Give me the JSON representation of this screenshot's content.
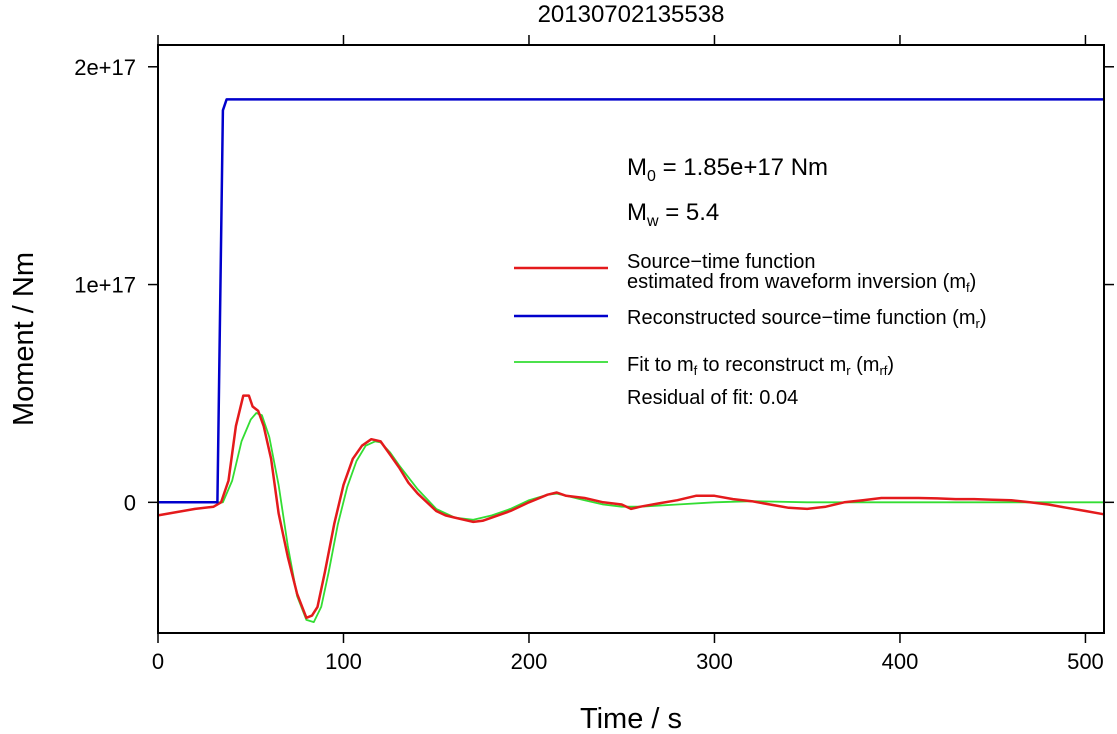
{
  "chart_data": {
    "type": "line",
    "title": "20130702135538",
    "xlabel": "Time / s",
    "ylabel": "Moment / Nm",
    "xlim": [
      0,
      510
    ],
    "ylim": [
      -6e+16,
      2.1e+17
    ],
    "x_ticks": [
      0,
      100,
      200,
      300,
      400,
      500
    ],
    "x_tick_labels": [
      "0",
      "100",
      "200",
      "300",
      "400",
      "500"
    ],
    "y_ticks": [
      0,
      1e+17,
      2e+17
    ],
    "y_tick_labels": [
      "0",
      "1e+17",
      "2e+17"
    ],
    "grid": false,
    "legend_position": "right, mid-height inside the plot",
    "annotations": {
      "m0_main": "M",
      "m0_sub": "0",
      "m0_rest": " = 1.85e+17 Nm",
      "mw_main": "M",
      "mw_sub": "w",
      "mw_rest": " = 5.4",
      "residual": "Residual of fit: 0.04"
    },
    "legend": [
      {
        "line1": "Source−time function",
        "line2_text": "estimated from waveform inversion (m",
        "line2_sub": "f",
        "line2_close": ")",
        "color": "#e41a1c"
      },
      {
        "line1_text": "Reconstructed source−time function (m",
        "line1_sub": "r",
        "line1_close": ")",
        "color": "#0000cc"
      },
      {
        "t1": "Fit to m",
        "s1": "f",
        "t2": " to reconstruct m",
        "s2": "r",
        "t3": " (m",
        "s3": "rf",
        "t4": ")",
        "color": "#33dd33"
      }
    ],
    "series": [
      {
        "role": "source-time function estimated from waveform inversion",
        "color": "#e41a1c",
        "x": [
          0,
          10,
          20,
          30,
          34,
          38,
          42,
          46,
          49,
          51,
          54,
          57,
          61,
          65,
          70,
          75,
          80,
          83,
          86,
          90,
          95,
          100,
          105,
          110,
          115,
          120,
          125,
          130,
          135,
          140,
          145,
          150,
          155,
          160,
          165,
          170,
          175,
          180,
          190,
          200,
          210,
          215,
          220,
          230,
          240,
          250,
          255,
          260,
          270,
          280,
          290,
          300,
          310,
          320,
          330,
          340,
          350,
          360,
          370,
          380,
          390,
          400,
          410,
          420,
          430,
          440,
          450,
          460,
          470,
          480,
          490,
          500,
          510
        ],
        "y": [
          -6000000000000000.0,
          -4500000000000000.0,
          -3000000000000000.0,
          -2000000000000000.0,
          0,
          1e+16,
          3.5e+16,
          4.9e+16,
          4.9e+16,
          4.4e+16,
          4.2e+16,
          3.5e+16,
          2e+16,
          -5000000000000000.0,
          -2.5e+16,
          -4.2e+16,
          -5.3e+16,
          -5.2e+16,
          -4.8e+16,
          -3.2e+16,
          -1e+16,
          8000000000000000.0,
          2e+16,
          2.6e+16,
          2.9e+16,
          2.8e+16,
          2.2e+16,
          1.6e+16,
          9000000000000000.0,
          4000000000000000.0,
          0.0,
          -4000000000000000.0,
          -6000000000000000.0,
          -7000000000000000.0,
          -8000000000000000.0,
          -9000000000000000.0,
          -8500000000000000.0,
          -7000000000000000.0,
          -4000000000000000.0,
          0,
          3500000000000000.0,
          4500000000000000.0,
          3000000000000000.0,
          2000000000000000.0,
          0,
          -1000000000000000.0,
          -3000000000000000.0,
          -2000000000000000.0,
          -500000000000000.0,
          1000000000000000.0,
          3000000000000000.0,
          3000000000000000.0,
          1500000000000000.0,
          500000000000000.0,
          -1000000000000000.0,
          -2500000000000000.0,
          -3000000000000000.0,
          -2000000000000000.0,
          0,
          1000000000000000.0,
          2000000000000000.0,
          2000000000000000.0,
          2000000000000000.0,
          1800000000000000.0,
          1500000000000000.0,
          1500000000000000.0,
          1200000000000000.0,
          1000000000000000.0,
          0,
          -1000000000000000.0,
          -2500000000000000.0,
          -4000000000000000.0,
          -5500000000000000.0
        ]
      },
      {
        "role": "reconstructed source-time function",
        "color": "#0000cc",
        "x": [
          0,
          32,
          35,
          37,
          510
        ],
        "y": [
          0,
          0,
          1.8e+17,
          1.85e+17,
          1.85e+17
        ]
      },
      {
        "role": "fit to estimated function",
        "color": "#33dd33",
        "x": [
          0,
          20,
          30,
          35,
          40,
          45,
          50,
          53,
          56,
          60,
          65,
          70,
          75,
          80,
          84,
          88,
          92,
          97,
          102,
          107,
          112,
          117,
          120,
          125,
          130,
          140,
          150,
          160,
          170,
          180,
          190,
          200,
          210,
          215,
          220,
          230,
          240,
          250,
          260,
          280,
          300,
          320,
          350,
          400,
          450,
          500,
          510
        ],
        "y": [
          0,
          0,
          0,
          0,
          1e+16,
          2.8e+16,
          3.8e+16,
          4.1e+16,
          4e+16,
          3e+16,
          8000000000000000.0,
          -2e+16,
          -4.3e+16,
          -5.4e+16,
          -5.5e+16,
          -4.8e+16,
          -3.2e+16,
          -1e+16,
          7000000000000000.0,
          1.9e+16,
          2.6e+16,
          2.8e+16,
          2.75e+16,
          2.3e+16,
          1.7e+16,
          6000000000000000.0,
          -3000000000000000.0,
          -7000000000000000.0,
          -8000000000000000.0,
          -6000000000000000.0,
          -3000000000000000.0,
          1000000000000000.0,
          3500000000000000.0,
          4000000000000000.0,
          3000000000000000.0,
          1000000000000000.0,
          -1000000000000000.0,
          -2000000000000000.0,
          -2000000000000000.0,
          -1000000000000000.0,
          0,
          500000000000000.0,
          0,
          0,
          0,
          0,
          0
        ]
      }
    ]
  }
}
